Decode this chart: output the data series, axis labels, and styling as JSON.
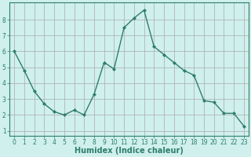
{
  "x": [
    0,
    1,
    2,
    3,
    4,
    5,
    6,
    7,
    8,
    9,
    10,
    11,
    12,
    13,
    14,
    15,
    16,
    17,
    18,
    19,
    20,
    21,
    22,
    23
  ],
  "y": [
    6.0,
    4.8,
    3.5,
    2.7,
    2.2,
    2.0,
    2.3,
    2.0,
    3.3,
    5.3,
    4.9,
    7.5,
    8.1,
    8.6,
    6.3,
    5.8,
    5.3,
    4.8,
    4.5,
    2.9,
    2.8,
    2.1,
    2.1,
    1.3
  ],
  "line_color": "#2e7d6e",
  "marker": "D",
  "marker_size": 2.0,
  "bg_color": "#cff0ec",
  "grid_color": "#aaaaaa",
  "xlabel": "Humidex (Indice chaleur)",
  "xlim": [
    -0.5,
    23.5
  ],
  "ylim": [
    0.7,
    9.1
  ],
  "yticks": [
    1,
    2,
    3,
    4,
    5,
    6,
    7,
    8
  ],
  "xticks": [
    0,
    1,
    2,
    3,
    4,
    5,
    6,
    7,
    8,
    9,
    10,
    11,
    12,
    13,
    14,
    15,
    16,
    17,
    18,
    19,
    20,
    21,
    22,
    23
  ],
  "tick_label_size": 5.5,
  "xlabel_size": 7.0,
  "axis_color": "#2e7d6e",
  "line_width": 1.0
}
